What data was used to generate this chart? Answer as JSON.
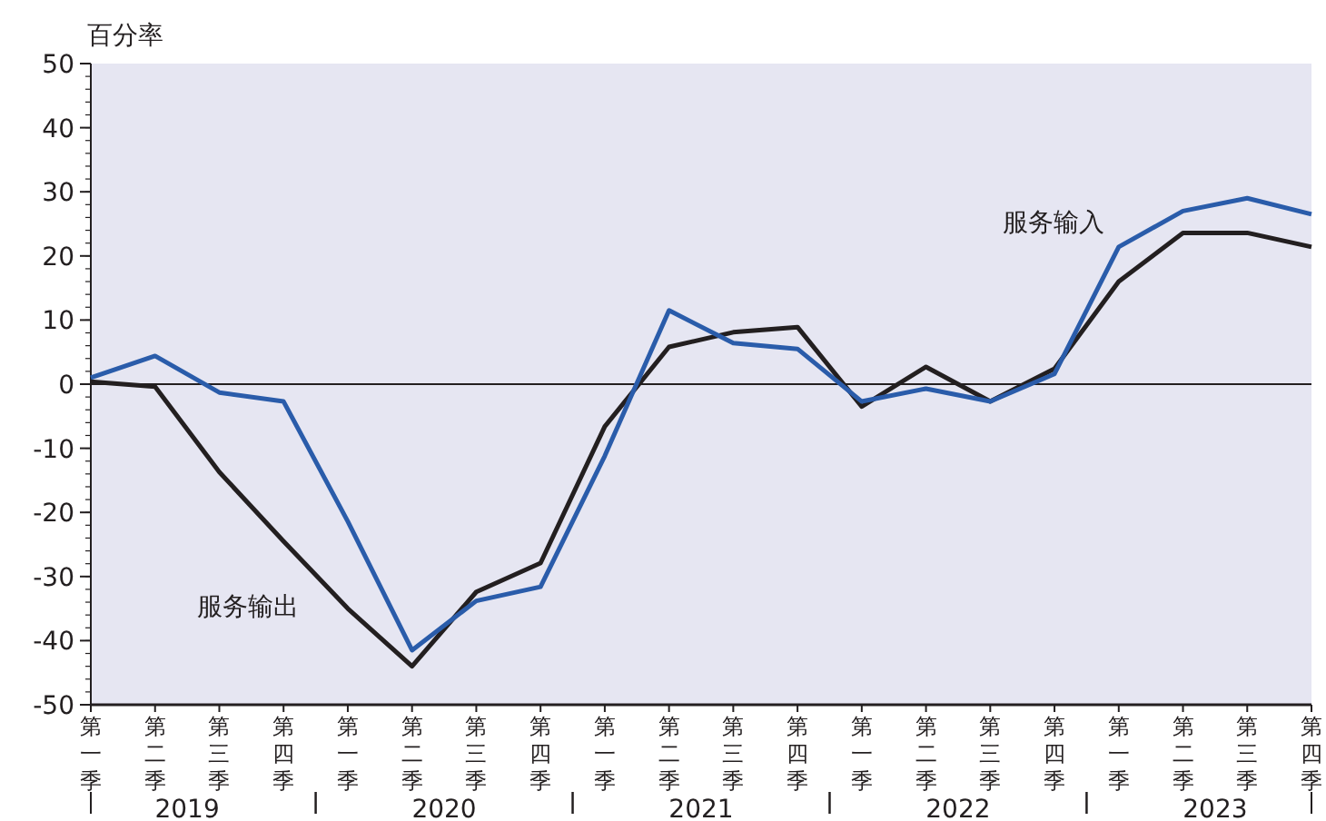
{
  "chart_data": {
    "type": "line",
    "ylabel": "百分率",
    "categories": [
      "第一季",
      "第二季",
      "第三季",
      "第四季",
      "第一季",
      "第二季",
      "第三季",
      "第四季",
      "第一季",
      "第二季",
      "第三季",
      "第四季",
      "第一季",
      "第二季",
      "第三季",
      "第四季",
      "第一季",
      "第二季",
      "第三季",
      "第四季"
    ],
    "series": [
      {
        "name": "服务输入",
        "color": "#2a5caa",
        "values": [
          1,
          4.4,
          -1.3,
          -2.7,
          -21.4,
          -41.5,
          -33.8,
          -31.6,
          -11.2,
          11.5,
          6.4,
          5.5,
          -2.7,
          -0.7,
          -2.7,
          1.6,
          21.4,
          27,
          29,
          26.5
        ]
      },
      {
        "name": "服务输出",
        "color": "#231f20",
        "values": [
          0.4,
          -0.4,
          -13.7,
          -24.5,
          -35,
          -44,
          -32.4,
          -27.9,
          -6.6,
          5.8,
          8.1,
          8.9,
          -3.5,
          2.7,
          -2.7,
          2.4,
          16,
          23.6,
          23.6,
          21.4
        ]
      }
    ],
    "ylim": [
      -50,
      50
    ],
    "yticks": [
      -50,
      -40,
      -30,
      -20,
      -10,
      0,
      10,
      20,
      30,
      40,
      50
    ],
    "ref_lines": [
      {
        "axis": "y",
        "value": 0,
        "color": "#231f20"
      }
    ],
    "annotations": [
      "2019",
      "2020",
      "2021",
      "2022",
      "2023"
    ],
    "grid": false
  }
}
